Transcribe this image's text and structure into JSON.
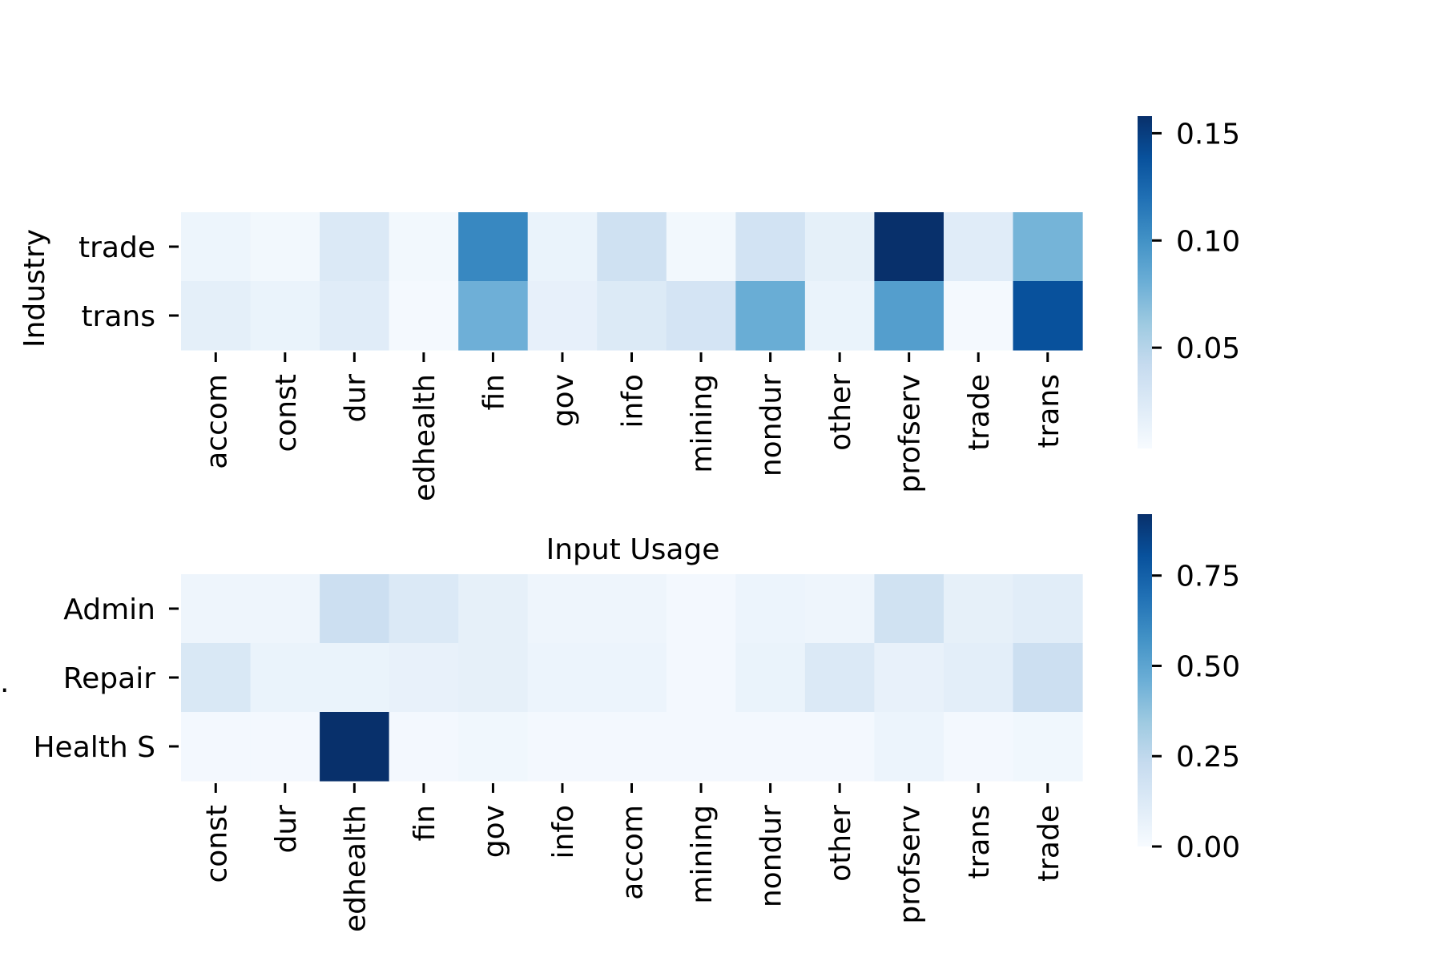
{
  "chart_data": [
    {
      "type": "heatmap",
      "title": "",
      "xlabel": "",
      "ylabel": "Industry",
      "x_categories": [
        "accom",
        "const",
        "dur",
        "edhealth",
        "fin",
        "gov",
        "info",
        "mining",
        "nondur",
        "other",
        "profserv",
        "trade",
        "trans"
      ],
      "y_categories": [
        "trade",
        "trans"
      ],
      "values": [
        [
          0.008,
          0.004,
          0.022,
          0.004,
          0.105,
          0.01,
          0.032,
          0.004,
          0.03,
          0.014,
          0.158,
          0.018,
          0.075
        ],
        [
          0.015,
          0.01,
          0.018,
          0.002,
          0.078,
          0.013,
          0.021,
          0.028,
          0.08,
          0.01,
          0.09,
          0.002,
          0.138
        ]
      ],
      "colormap": "Blues",
      "vmin": 0.0,
      "vmax": 0.158,
      "colorbar_ticks": [
        0.05,
        0.1,
        0.15
      ],
      "colorbar_tick_labels": [
        "0.05",
        "0.10",
        "0.15"
      ]
    },
    {
      "type": "heatmap",
      "title": "Input Usage",
      "xlabel": "",
      "ylabel": "",
      "x_categories": [
        "const",
        "dur",
        "edhealth",
        "fin",
        "gov",
        "info",
        "accom",
        "mining",
        "nondur",
        "other",
        "profserv",
        "trans",
        "trade"
      ],
      "y_categories": [
        "Admin",
        "Repair",
        "Health S"
      ],
      "values": [
        [
          0.04,
          0.04,
          0.2,
          0.13,
          0.08,
          0.04,
          0.04,
          0.02,
          0.05,
          0.04,
          0.18,
          0.08,
          0.1
        ],
        [
          0.14,
          0.06,
          0.06,
          0.07,
          0.08,
          0.05,
          0.05,
          0.02,
          0.06,
          0.13,
          0.07,
          0.09,
          0.2
        ],
        [
          0.02,
          0.02,
          0.92,
          0.02,
          0.03,
          0.02,
          0.02,
          0.02,
          0.02,
          0.02,
          0.05,
          0.02,
          0.03
        ]
      ],
      "colormap": "Blues",
      "vmin": 0.0,
      "vmax": 0.92,
      "colorbar_ticks": [
        0.0,
        0.25,
        0.5,
        0.75
      ],
      "colorbar_tick_labels": [
        "0.00",
        "0.25",
        "0.50",
        "0.75"
      ]
    }
  ],
  "stray_label": "."
}
